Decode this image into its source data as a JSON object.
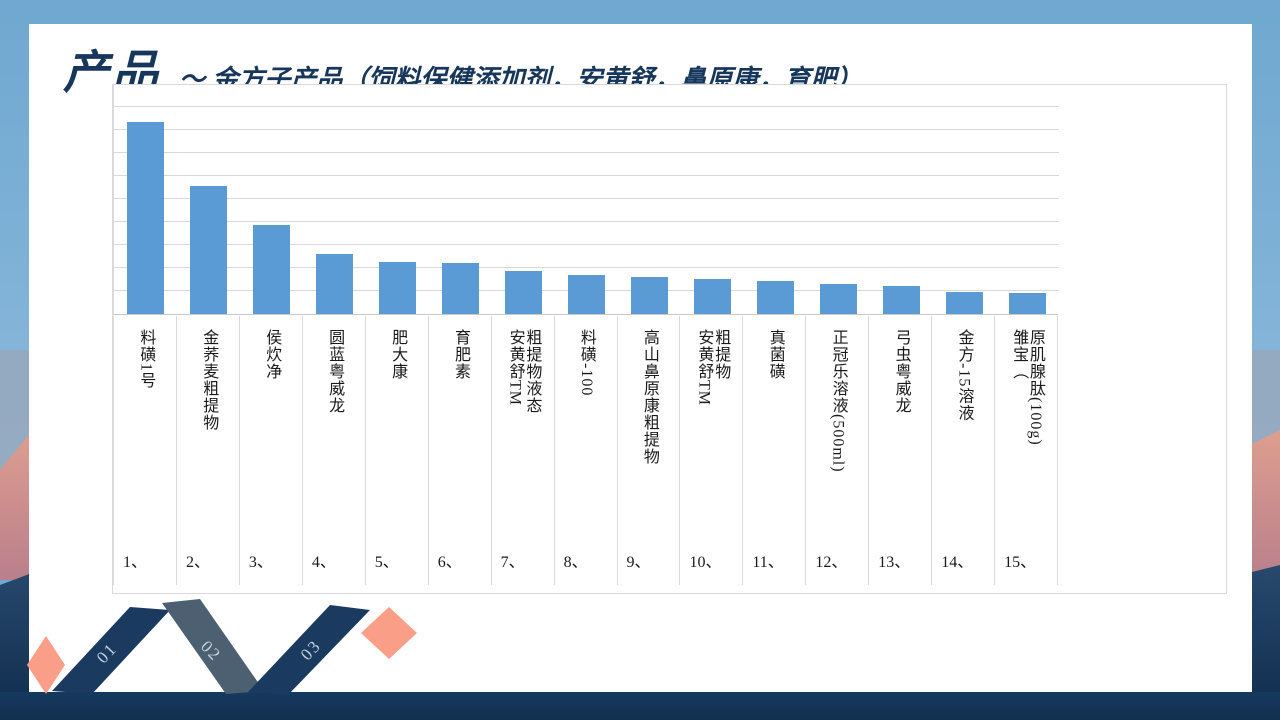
{
  "slide": {
    "title": "产品",
    "subtitle": "～ 金方子产品（饲料保健添加剂，安黄舒，鼻原康，育肥）"
  },
  "chart_data": {
    "type": "bar",
    "title": "",
    "xlabel": "",
    "ylabel": "",
    "categories": [
      "料磺1号",
      "金荞麦粗提物",
      "侯炊净",
      "圆蓝粤威龙",
      "肥大康",
      "育肥素",
      "安黄舒TM\n粗提物液态",
      "料磺-100",
      "高山鼻原康粗提物",
      "安黄舒TM\n粗提物",
      "真菌磺",
      "正冠乐溶液(500ml)",
      "弓虫粤威龙",
      "金方-15溶液",
      "雏宝（\n原肌腺肽(100g)"
    ],
    "category_numbers": [
      "1、",
      "2、",
      "3、",
      "4、",
      "5、",
      "6、",
      "7、",
      "8、",
      "9、",
      "10、",
      "11、",
      "12、",
      "13、",
      "14、",
      "15、"
    ],
    "values": [
      8.35,
      5.55,
      3.85,
      2.6,
      2.25,
      2.2,
      1.85,
      1.7,
      1.6,
      1.5,
      1.45,
      1.3,
      1.2,
      0.95,
      0.9
    ],
    "ylim": [
      0,
      10
    ],
    "grid": true,
    "legend": "none",
    "bar_color": "#5B9BD5"
  },
  "ribbon": {
    "steps": [
      {
        "label": "01"
      },
      {
        "label": "02"
      },
      {
        "label": "03"
      }
    ]
  },
  "colors": {
    "title_navy": "#16365C",
    "bar_blue": "#5B9BD5",
    "gridline_gray": "#D9D9D9",
    "ribbon_navy": "#1B3A5F",
    "ribbon_slate": "#4C6072",
    "ribbon_salmon": "#FA9E87",
    "bottom_band_navy": "#16395F"
  }
}
